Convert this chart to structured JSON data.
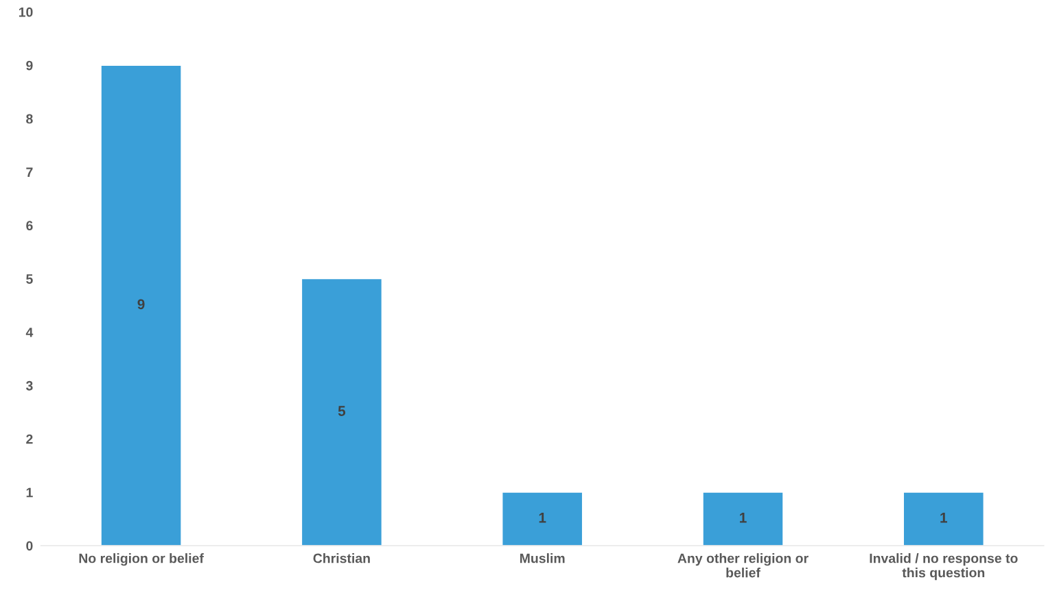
{
  "chart_data": {
    "type": "bar",
    "categories": [
      "No religion or belief",
      "Christian",
      "Muslim",
      "Any other religion or\nbelief",
      "Invalid / no response to\nthis question"
    ],
    "values": [
      9,
      5,
      1,
      1,
      1
    ],
    "color": "#3a9fd8",
    "ylim": [
      0,
      10
    ],
    "yticks": [
      0,
      1,
      2,
      3,
      4,
      5,
      6,
      7,
      8,
      9,
      10
    ],
    "data_labels": true,
    "grid": false
  }
}
